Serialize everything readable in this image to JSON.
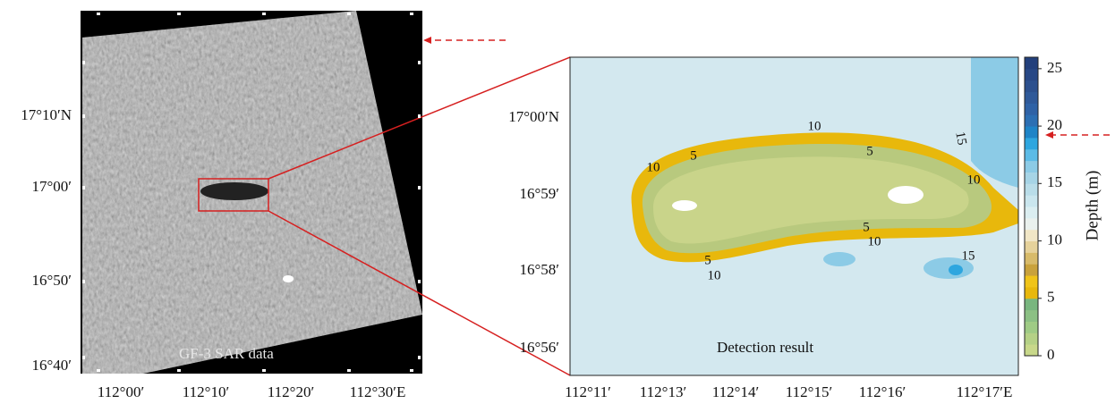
{
  "left_panel": {
    "x_labels": [
      "112°00′",
      "112°10′",
      "112°20′",
      "112°30′E"
    ],
    "y_labels": [
      "17°10′N",
      "17°00′",
      "16°50′",
      "16°40′"
    ],
    "annotation": "GF-3 SAR data"
  },
  "right_panel": {
    "x_labels": [
      "112°11′",
      "112°13′",
      "112°14′",
      "112°15′",
      "112°16′",
      "112°17′E"
    ],
    "y_labels": [
      "17°00′N",
      "16°59′",
      "16°58′",
      "16°56′"
    ],
    "annotation": "Detection result",
    "contour_labels": [
      "10",
      "5",
      "10",
      "5",
      "15",
      "10",
      "5",
      "10",
      "15",
      "5",
      "10"
    ]
  },
  "colorbar": {
    "label": "Depth (m)",
    "ticks": [
      0,
      5,
      10,
      15,
      20,
      25
    ],
    "range": [
      0,
      26
    ],
    "colors": [
      "#c8d88a",
      "#b5d186",
      "#9fcb85",
      "#8cc084",
      "#79b67f",
      "#e8b80c",
      "#f0c419",
      "#c9a23c",
      "#d8bb6a",
      "#e6d29b",
      "#f1e6c6",
      "#eaf1ee",
      "#dbeef1",
      "#cae6ee",
      "#b9dde9",
      "#a6d4e6",
      "#8ccbe6",
      "#5cbbe6",
      "#2ea6df",
      "#1e84c7",
      "#2c6fb3",
      "#2f62a6",
      "#2f5999",
      "#2c508e",
      "#284886",
      "#23407c"
    ]
  }
}
